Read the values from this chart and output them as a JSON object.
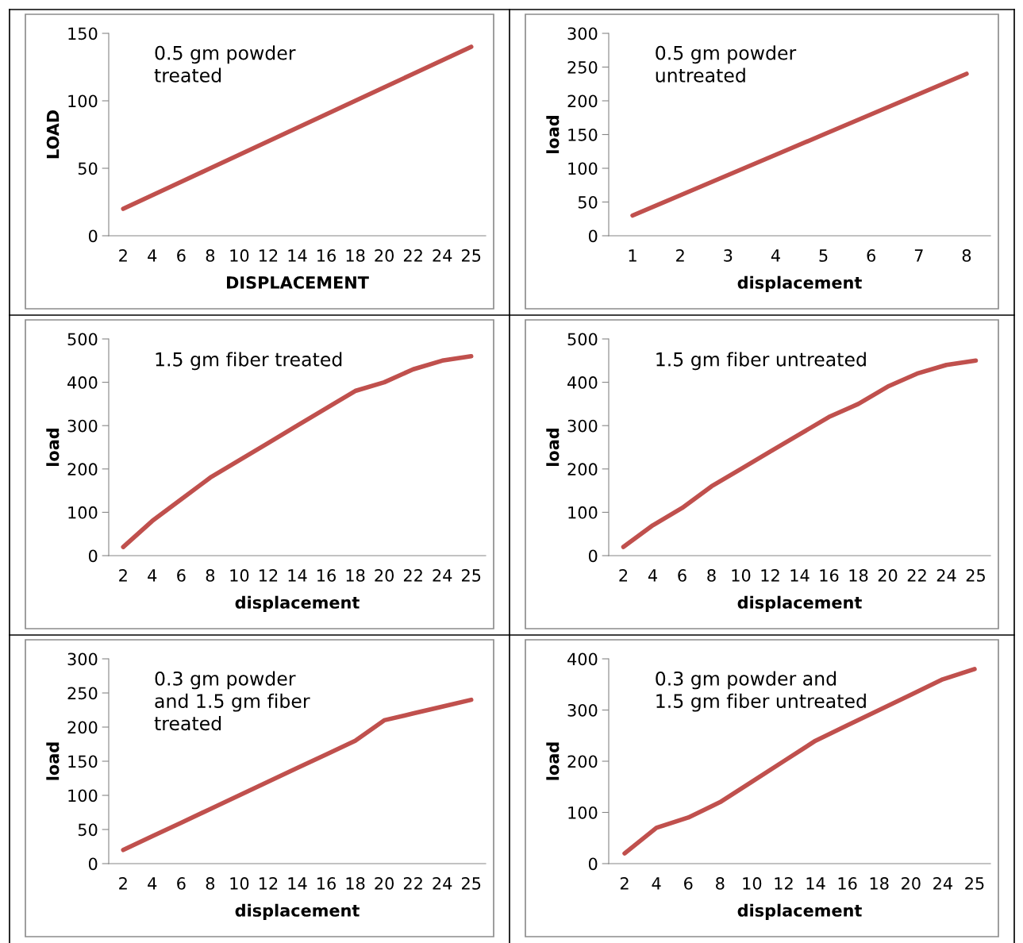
{
  "chart_data": [
    {
      "type": "line",
      "categories": [
        "2",
        "4",
        "6",
        "8",
        "10",
        "12",
        "14",
        "16",
        "18",
        "20",
        "22",
        "24",
        "25"
      ],
      "xlabel": "DISPLACEMENT",
      "ylabel": "LOAD",
      "ylim": [
        0,
        150
      ],
      "yticks": [
        0,
        50,
        100,
        150
      ],
      "annotations": [
        "0.5 gm powder\ntreated"
      ],
      "series": [
        {
          "color": "#c0504d",
          "values": [
            20,
            30,
            40,
            50,
            60,
            70,
            80,
            90,
            100,
            110,
            120,
            130,
            140
          ]
        }
      ]
    },
    {
      "type": "line",
      "categories": [
        "1",
        "2",
        "3",
        "4",
        "5",
        "6",
        "7",
        "8"
      ],
      "xlabel": "displacement",
      "ylabel": "load",
      "ylim": [
        0,
        300
      ],
      "yticks": [
        0,
        50,
        100,
        150,
        200,
        250,
        300
      ],
      "annotations": [
        "0.5 gm powder\nuntreated"
      ],
      "series": [
        {
          "color": "#c0504d",
          "values": [
            30,
            60,
            90,
            120,
            150,
            180,
            210,
            240
          ]
        }
      ]
    },
    {
      "type": "line",
      "categories": [
        "2",
        "4",
        "6",
        "8",
        "10",
        "12",
        "14",
        "16",
        "18",
        "20",
        "22",
        "24",
        "25"
      ],
      "xlabel": "displacement",
      "ylabel": "load",
      "ylim": [
        0,
        500
      ],
      "yticks": [
        0,
        100,
        200,
        300,
        400,
        500
      ],
      "annotations": [
        "1.5 gm fiber treated"
      ],
      "series": [
        {
          "color": "#c0504d",
          "values": [
            20,
            80,
            130,
            180,
            220,
            260,
            300,
            340,
            380,
            400,
            430,
            450,
            460
          ]
        }
      ]
    },
    {
      "type": "line",
      "categories": [
        "2",
        "4",
        "6",
        "8",
        "10",
        "12",
        "14",
        "16",
        "18",
        "20",
        "22",
        "24",
        "25"
      ],
      "xlabel": "displacement",
      "ylabel": "load",
      "ylim": [
        0,
        500
      ],
      "yticks": [
        0,
        100,
        200,
        300,
        400,
        500
      ],
      "annotations": [
        "1.5 gm fiber untreated"
      ],
      "series": [
        {
          "color": "#c0504d",
          "values": [
            20,
            70,
            110,
            160,
            200,
            240,
            280,
            320,
            350,
            390,
            420,
            440,
            450
          ]
        }
      ]
    },
    {
      "type": "line",
      "categories": [
        "2",
        "4",
        "6",
        "8",
        "10",
        "12",
        "14",
        "16",
        "18",
        "20",
        "22",
        "24",
        "25"
      ],
      "xlabel": "displacement",
      "ylabel": "load",
      "ylim": [
        0,
        300
      ],
      "yticks": [
        0,
        50,
        100,
        150,
        200,
        250,
        300
      ],
      "annotations": [
        "0.3 gm powder\nand 1.5 gm fiber\ntreated"
      ],
      "series": [
        {
          "color": "#c0504d",
          "values": [
            20,
            40,
            60,
            80,
            100,
            120,
            140,
            160,
            180,
            210,
            220,
            230,
            240
          ]
        }
      ]
    },
    {
      "type": "line",
      "categories": [
        "2",
        "4",
        "6",
        "8",
        "10",
        "12",
        "14",
        "16",
        "18",
        "20",
        "24",
        "25"
      ],
      "xlabel": "displacement",
      "ylabel": "load",
      "ylim": [
        0,
        400
      ],
      "yticks": [
        0,
        100,
        200,
        300,
        400
      ],
      "annotations": [
        "0.3 gm powder and\n1.5 gm fiber untreated"
      ],
      "series": [
        {
          "color": "#c0504d",
          "values": [
            20,
            70,
            90,
            120,
            160,
            200,
            240,
            270,
            300,
            330,
            360,
            380
          ]
        }
      ]
    }
  ]
}
